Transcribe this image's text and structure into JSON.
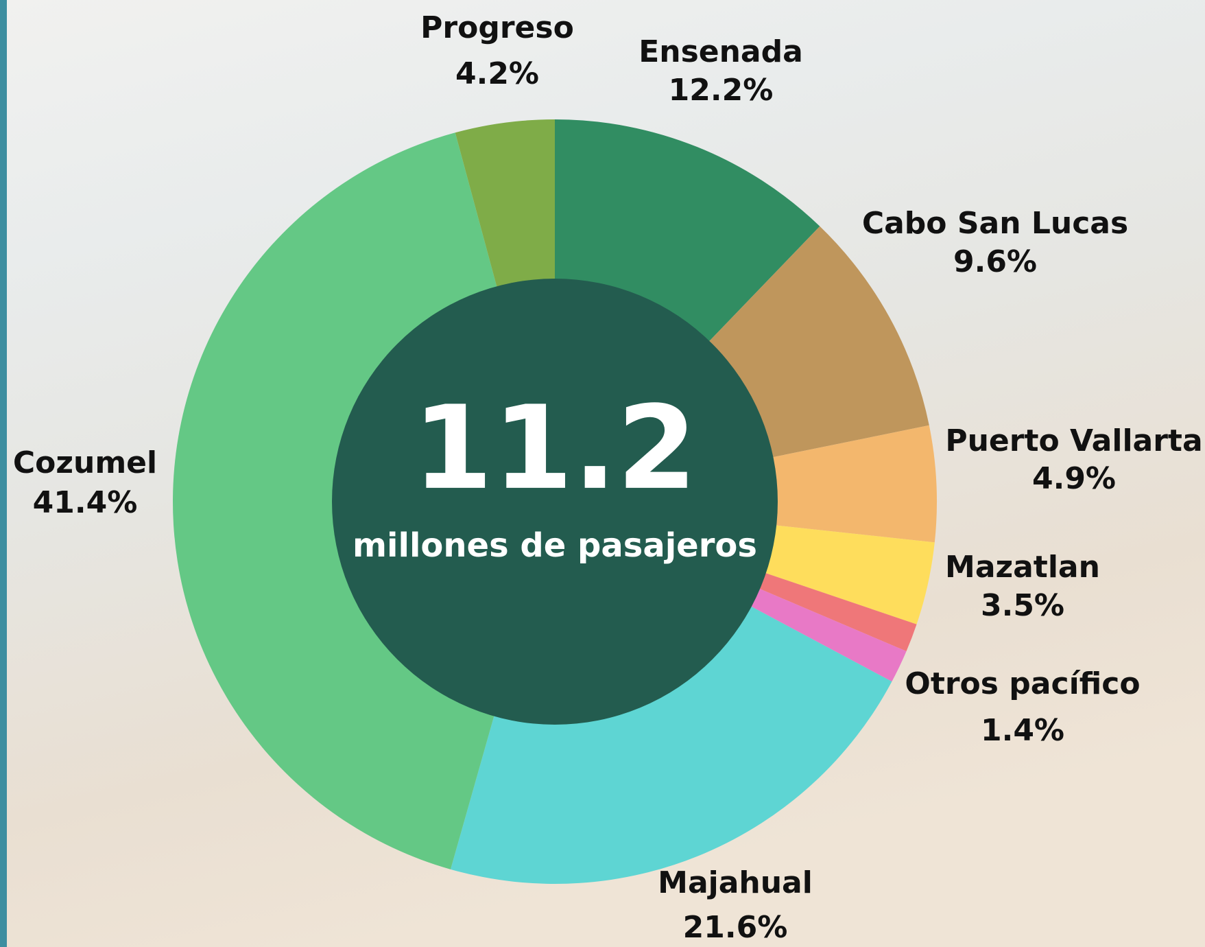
{
  "chart_data": {
    "type": "donut",
    "categories": [
      "Ensenada",
      "Cabo San Lucas",
      "Puerto Vallarta",
      "Mazatlan",
      null,
      "Otros pacífico",
      "Majahual",
      "Cozumel",
      "Progreso"
    ],
    "values": [
      12.2,
      9.6,
      4.9,
      3.5,
      1.2,
      1.4,
      21.6,
      41.4,
      4.2
    ],
    "value_labels": [
      "12.2%",
      "9.6%",
      "4.9%",
      "3.5%",
      null,
      "1.4%",
      "21.6%",
      "41.4%",
      "4.2%"
    ],
    "colors": [
      "#318d62",
      "#bf965c",
      "#f3b76d",
      "#fedd5c",
      "#ef7779",
      "#e879c6",
      "#5ed5d3",
      "#64c885",
      "#7fac48"
    ],
    "center_value": "11.2",
    "center_label": "millones de pasajeros"
  }
}
